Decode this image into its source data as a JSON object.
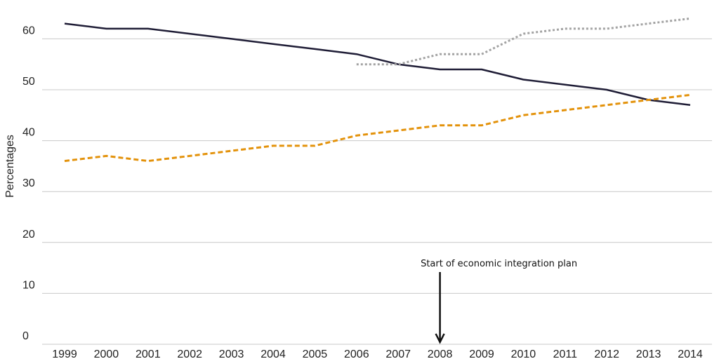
{
  "chart_data": {
    "type": "line",
    "title": "",
    "xlabel": "",
    "ylabel": "Percentages",
    "ylim": [
      0,
      65
    ],
    "yticks": [
      "0",
      "10",
      "20",
      "30",
      "40",
      "50",
      "60"
    ],
    "x": [
      "1999",
      "2000",
      "2001",
      "2002",
      "2003",
      "2004",
      "2005",
      "2006",
      "2007",
      "2008",
      "2009",
      "2010",
      "2011",
      "2012",
      "2013",
      "2014"
    ],
    "grid": true,
    "legend": "none",
    "series": [
      {
        "name": "series-dark-solid",
        "color": "#1f1d36",
        "style": "solid",
        "values": [
          63,
          62,
          62,
          61,
          60,
          59,
          58,
          57,
          55,
          54,
          54,
          52,
          51,
          50,
          48,
          47
        ]
      },
      {
        "name": "series-orange-dashed",
        "color": "#e3920b",
        "style": "dashed",
        "values": [
          36,
          37,
          36,
          37,
          38,
          39,
          39,
          41,
          42,
          43,
          43,
          45,
          46,
          47,
          48,
          49
        ]
      },
      {
        "name": "series-gray-dotted",
        "color": "#a3a3a3",
        "style": "dotted",
        "values": [
          null,
          null,
          null,
          null,
          null,
          null,
          null,
          55,
          55,
          57,
          57,
          61,
          62,
          62,
          63,
          64
        ]
      }
    ],
    "annotations": [
      {
        "text": "Start of economic integration plan",
        "x": "2008",
        "arrow": "down"
      }
    ]
  }
}
